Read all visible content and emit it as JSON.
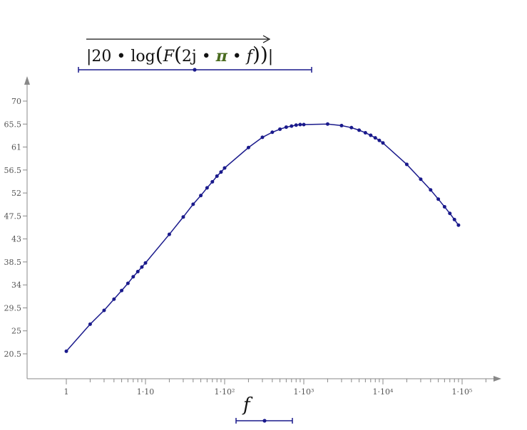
{
  "y_expression": {
    "parts": [
      "20",
      "log",
      "F",
      "2j",
      "π",
      "f"
    ],
    "colors": {
      "text": "#111111",
      "pi": "#4a6b1f",
      "bar": "#1a1a8c"
    }
  },
  "x_expression": {
    "variable": "f"
  },
  "chart_data": {
    "type": "line",
    "title": "",
    "xlabel": "f",
    "ylabel": "|20·log(F(2j·π·f))|",
    "xscale": "log",
    "xlim": [
      0.5,
      200000
    ],
    "ylim": [
      17,
      74
    ],
    "grid": false,
    "line_color": "#1a1a8c",
    "x_ticks": [
      {
        "value": 1,
        "label": "1"
      },
      {
        "value": 10,
        "label": "1·10"
      },
      {
        "value": 100,
        "label": "1·10²"
      },
      {
        "value": 1000,
        "label": "1·10³"
      },
      {
        "value": 10000,
        "label": "1·10⁴"
      },
      {
        "value": 100000,
        "label": "1·10⁵"
      }
    ],
    "y_ticks": [
      {
        "value": 20.5,
        "label": "20.5"
      },
      {
        "value": 25,
        "label": "25"
      },
      {
        "value": 29.5,
        "label": "29.5"
      },
      {
        "value": 34,
        "label": "34"
      },
      {
        "value": 38.5,
        "label": "38.5"
      },
      {
        "value": 43,
        "label": "43"
      },
      {
        "value": 47.5,
        "label": "47.5"
      },
      {
        "value": 52,
        "label": "52"
      },
      {
        "value": 56.5,
        "label": "56.5"
      },
      {
        "value": 61,
        "label": "61"
      },
      {
        "value": 65.5,
        "label": "65.5"
      },
      {
        "value": 70,
        "label": "70"
      }
    ],
    "series": [
      {
        "x": [
          1,
          2,
          3,
          4,
          5,
          6,
          7,
          8,
          9,
          10,
          20,
          30,
          40,
          50,
          60,
          70,
          80,
          90,
          100,
          200,
          300,
          400,
          500,
          600,
          700,
          800,
          900,
          1000,
          2000,
          3000,
          4000,
          5000,
          6000,
          7000,
          8000,
          9000,
          10000,
          20000,
          30000,
          40000,
          50000,
          60000,
          70000,
          80000,
          90000
        ],
        "y": [
          21.0,
          26.3,
          29.0,
          31.2,
          32.9,
          34.3,
          35.6,
          36.6,
          37.5,
          38.3,
          43.9,
          47.3,
          49.8,
          51.5,
          53.0,
          54.2,
          55.3,
          56.1,
          56.9,
          60.9,
          62.9,
          63.9,
          64.5,
          64.9,
          65.1,
          65.3,
          65.4,
          65.4,
          65.5,
          65.2,
          64.8,
          64.3,
          63.8,
          63.3,
          62.8,
          62.3,
          61.8,
          57.6,
          54.7,
          52.6,
          50.8,
          49.3,
          48.0,
          46.8,
          45.7
        ]
      }
    ]
  }
}
